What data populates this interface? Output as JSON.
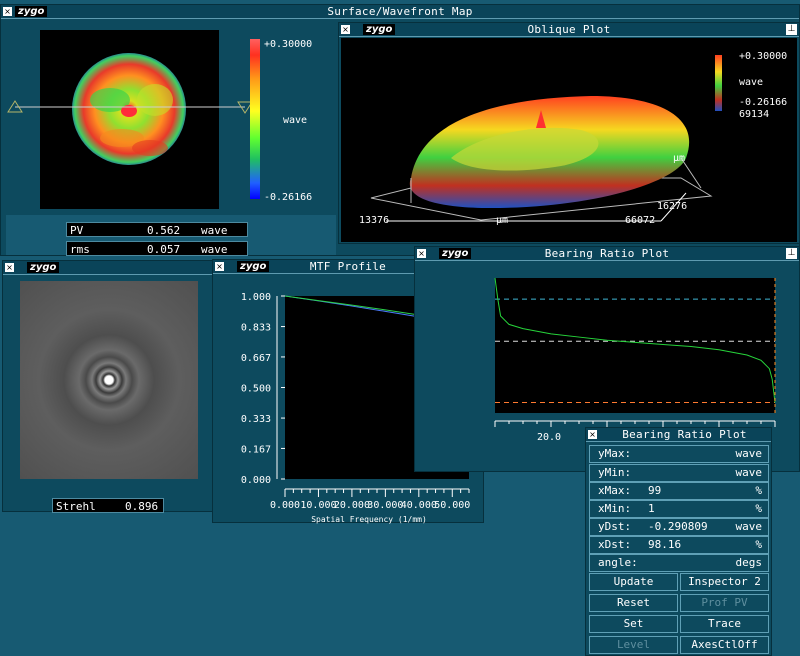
{
  "surface": {
    "title": "Surface/Wavefront Map",
    "logo": "zygo",
    "scale_max": "+0.30000",
    "scale_min": "-0.26166",
    "scale_unit": "wave",
    "pv": {
      "label": "PV",
      "value": "0.562",
      "unit": "wave"
    },
    "rms": {
      "label": "rms",
      "value": "0.057",
      "unit": "wave"
    }
  },
  "oblique": {
    "title": "Oblique Plot",
    "logo": "zygo",
    "scale_max": "+0.30000",
    "scale_unit": "wave",
    "scale_min": "-0.26166",
    "z_extra": "69134",
    "y_unit": "µm",
    "x_left": "13376",
    "x_unit": "µm",
    "x_right": "66072",
    "y_value": "16276"
  },
  "psf": {
    "logo": "zygo",
    "strehl_label": "Strehl",
    "strehl_value": "0.896"
  },
  "mtf": {
    "title": "MTF Profile",
    "logo": "zygo",
    "xlabel": "Spatial Frequency (1/mm)",
    "yticks": [
      "1.000",
      "0.833",
      "0.667",
      "0.500",
      "0.333",
      "0.167",
      "0.000"
    ],
    "xticks": [
      "0.000",
      "10.000",
      "20.000",
      "30.000",
      "40.000",
      "50.000"
    ]
  },
  "bearing": {
    "title": "Bearing Ratio Plot",
    "logo": "zygo",
    "x_tick": "20.0"
  },
  "inspector": {
    "title": "Bearing Ratio Plot",
    "rows": [
      {
        "label": "yMax:",
        "value": "",
        "unit": "wave"
      },
      {
        "label": "yMin:",
        "value": "",
        "unit": "wave"
      },
      {
        "label": "xMax:",
        "value": "99",
        "unit": "%"
      },
      {
        "label": "xMin:",
        "value": "1",
        "unit": "%"
      },
      {
        "label": "yDst:",
        "value": "-0.290809",
        "unit": "wave"
      },
      {
        "label": "xDst:",
        "value": "98.16",
        "unit": "%"
      },
      {
        "label": "angle:",
        "value": "",
        "unit": "degs"
      }
    ],
    "buttons": {
      "update": "Update",
      "inspector2": "Inspector 2",
      "reset": "Reset",
      "prof_pv": "Prof PV",
      "set": "Set",
      "trace": "Trace",
      "level": "Level",
      "axesctl": "AxesCtlOff"
    }
  },
  "colors": {
    "background": "#175a72",
    "panel": "#0d4a5e",
    "mtf_line1": "#4b7bff",
    "mtf_line2": "#2bd04a",
    "bearing_curve": "#27d43b"
  },
  "chart_data": [
    {
      "type": "line",
      "title": "MTF Profile",
      "xlabel": "Spatial Frequency (1/mm)",
      "ylabel": "",
      "xlim": [
        0,
        55
      ],
      "ylim": [
        0,
        1
      ],
      "series": [
        {
          "x": [
            0,
            10,
            20,
            30,
            40,
            50,
            55
          ],
          "values": [
            1.0,
            0.973,
            0.945,
            0.916,
            0.886,
            0.855,
            0.839
          ]
        },
        {
          "x": [
            0,
            10,
            20,
            30,
            40,
            50,
            55
          ],
          "values": [
            1.0,
            0.975,
            0.95,
            0.924,
            0.896,
            0.866,
            0.85
          ]
        }
      ]
    },
    {
      "type": "line",
      "title": "Bearing Ratio Plot",
      "xlabel": "",
      "ylabel": "",
      "xlim": [
        0,
        100
      ],
      "ylim": [
        -0.34,
        0.3
      ],
      "series": [
        {
          "x": [
            0,
            1,
            2,
            5,
            10,
            20,
            30,
            40,
            50,
            60,
            70,
            80,
            90,
            95,
            98,
            99,
            100
          ],
          "values": [
            0.3,
            0.2,
            0.12,
            0.08,
            0.06,
            0.035,
            0.02,
            0.005,
            -0.005,
            -0.015,
            -0.025,
            -0.04,
            -0.065,
            -0.09,
            -0.13,
            -0.18,
            -0.29
          ]
        }
      ],
      "reference_lines": [
        0.2,
        0.0,
        -0.29
      ]
    }
  ]
}
